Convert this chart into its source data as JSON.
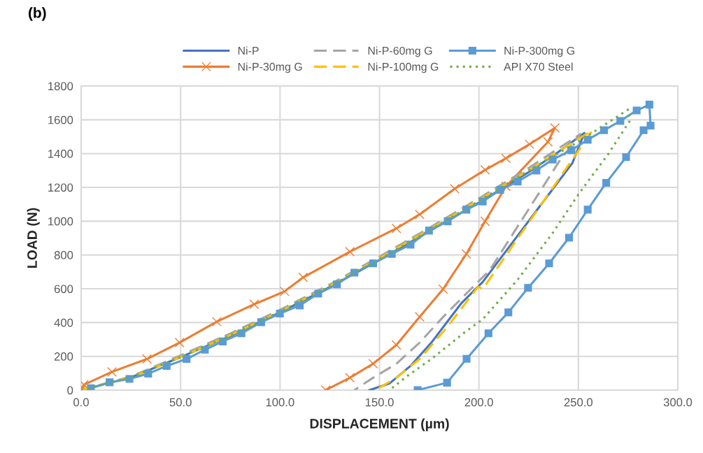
{
  "chart_data": {
    "type": "line",
    "title": null,
    "annotations": [
      "(b)"
    ],
    "xlabel": "DISPLACEMENT (µm)",
    "ylabel": "LOAD (N)",
    "xlim": [
      0,
      300
    ],
    "ylim": [
      0,
      1800
    ],
    "xticks": [
      {
        "value": 0,
        "label": "0.0"
      },
      {
        "value": 50,
        "label": "50.0"
      },
      {
        "value": 100,
        "label": "100.0"
      },
      {
        "value": 150,
        "label": "150.0"
      },
      {
        "value": 200,
        "label": "200.0"
      },
      {
        "value": 250,
        "label": "250.0"
      },
      {
        "value": 300,
        "label": "300.0"
      }
    ],
    "yticks": [
      0,
      200,
      400,
      600,
      800,
      1000,
      1200,
      1400,
      1600,
      1800
    ],
    "grid": true,
    "legend": "top",
    "series": [
      {
        "name": "Ni-P",
        "color": "#4472c4",
        "line_style": "solid",
        "marker": "none",
        "x": [
          0,
          25,
          50,
          75,
          100,
          125,
          150,
          175,
          200,
          225,
          240,
          253,
          247,
          201.9,
          191.3,
          176.1,
          165.6,
          155,
          145
        ],
        "values": [
          0,
          75,
          195,
          320,
          460,
          610,
          770,
          940,
          1110,
          1290,
          1410,
          1522,
          1344,
          640,
          516,
          281,
          143,
          39,
          0
        ]
      },
      {
        "name": "Ni-P-30mg G",
        "color": "#ed7d31",
        "line_style": "solid",
        "marker": "cross",
        "x": [
          0,
          1.4,
          15.5,
          33.1,
          49.5,
          68.2,
          87,
          102.3,
          111.6,
          135.1,
          158.5,
          170.2,
          187.8,
          203.1,
          213.6,
          225.4,
          238.2,
          234.7,
          213.6,
          203.1,
          193.7,
          182,
          170.2,
          158.5,
          146.8,
          135.1,
          123
        ],
        "values": [
          0,
          32,
          108,
          184,
          281,
          405,
          508,
          584,
          667,
          819,
          957,
          1040,
          1192,
          1303,
          1372,
          1455,
          1552,
          1469,
          1206,
          999,
          806,
          598,
          433,
          267,
          156,
          73,
          0
        ]
      },
      {
        "name": "Ni-P-60mg G",
        "color": "#a5a5a5",
        "line_style": "dashed",
        "marker": "none",
        "x": [
          0,
          25,
          50,
          75,
          100,
          125,
          150,
          175,
          200,
          225,
          251,
          240.6,
          205.4,
          194,
          182,
          170.2,
          158.5,
          146.8,
          137.4
        ],
        "values": [
          0,
          80,
          205,
          335,
          475,
          625,
          790,
          960,
          1135,
          1315,
          1515,
          1358,
          709,
          575,
          433,
          281,
          156,
          73,
          0
        ]
      },
      {
        "name": "Ni-P-100mg G",
        "color": "#ffc000",
        "line_style": "dashed",
        "marker": "none",
        "x": [
          0,
          25,
          50,
          75,
          100,
          125,
          150,
          175,
          200,
          225,
          245,
          257,
          252.3,
          201.9,
          199.6,
          184.3,
          170.2,
          158.5,
          148
        ],
        "values": [
          0,
          75,
          195,
          325,
          465,
          615,
          780,
          950,
          1125,
          1300,
          1450,
          1537,
          1455,
          598,
          612,
          377,
          184,
          73,
          0
        ]
      },
      {
        "name": "Ni-P-300mg G",
        "color": "#5b9bd5",
        "line_style": "solid",
        "marker": "square",
        "x": [
          4.9,
          14.3,
          24.3,
          33.7,
          43,
          53,
          62.2,
          71.2,
          80.6,
          90.5,
          99.9,
          109.9,
          119.2,
          128.6,
          137.4,
          146.8,
          156.2,
          165.6,
          174.9,
          184.3,
          193.7,
          201.9,
          210.7,
          219.5,
          228.9,
          237.1,
          246.5,
          254.7,
          262.9,
          271.1,
          279.3,
          285.7,
          286.3,
          282.8,
          274,
          264,
          254.7,
          245.3,
          235.3,
          224.7,
          214.8,
          204.8,
          193.8,
          184,
          169.2
        ],
        "values": [
          11,
          46,
          66,
          97,
          143,
          184,
          239,
          288,
          336,
          402,
          453,
          501,
          571,
          626,
          695,
          750,
          806,
          861,
          944,
          999,
          1068,
          1116,
          1185,
          1234,
          1300,
          1365,
          1420,
          1482,
          1538,
          1593,
          1655,
          1690,
          1565,
          1538,
          1379,
          1227,
          1068,
          902,
          750,
          605,
          460,
          336,
          185,
          44,
          0
        ]
      },
      {
        "name": "API X70 Steel",
        "color": "#70ad47",
        "line_style": "dotted",
        "marker": "none",
        "x": [
          0,
          25,
          50,
          75,
          100,
          125,
          150,
          175,
          200,
          225,
          250,
          275,
          275.8,
          265.2,
          254.7,
          248.8,
          237.1,
          219.5,
          201.9,
          193.7,
          176.1,
          164.4,
          155
        ],
        "values": [
          0,
          75,
          195,
          325,
          465,
          615,
          775,
          945,
          1120,
          1300,
          1470,
          1660,
          1593,
          1400,
          1234,
          1137,
          930,
          654,
          419,
          350,
          184,
          87,
          0
        ]
      }
    ]
  }
}
